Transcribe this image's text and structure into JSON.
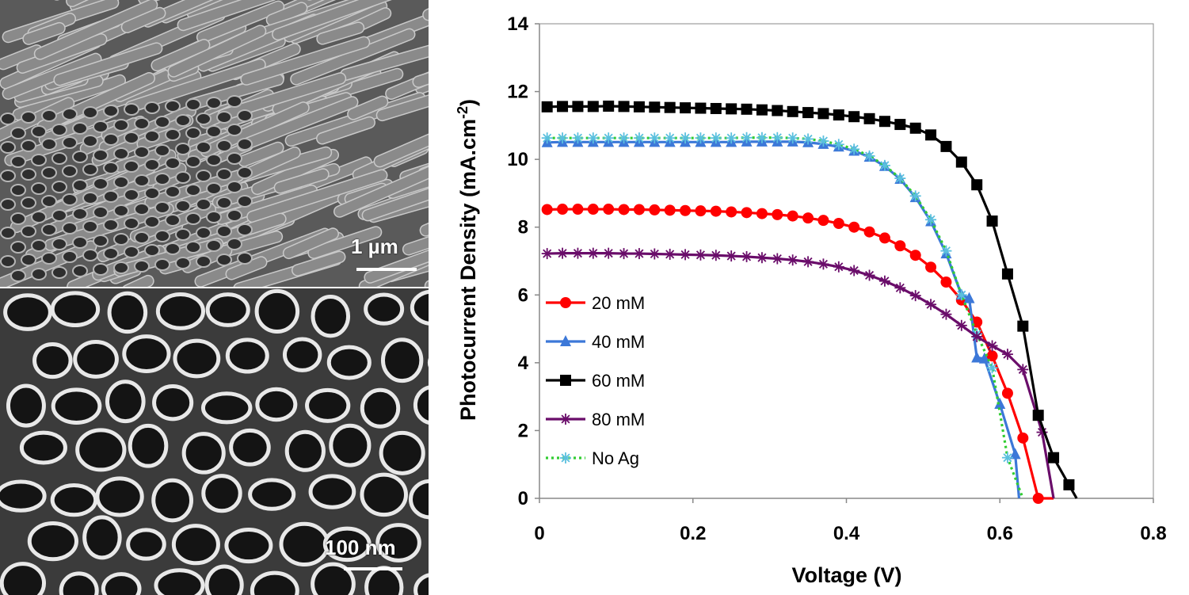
{
  "images": {
    "top": {
      "description_label": "SEM side view of TiO2 nanotube array",
      "scalebar_label": "1 µm"
    },
    "bottom": {
      "description_label": "SEM top view of TiO2 nanotube openings",
      "scalebar_label": "100 nm"
    }
  },
  "chart_data": {
    "type": "line",
    "title": "",
    "xlabel": "Voltage (V)",
    "ylabel": "Photocurrent Density (mA.cm",
    "ylabel_sup": "-2",
    "ylabel_end": ")",
    "xlim": [
      0,
      0.8
    ],
    "ylim": [
      0,
      14
    ],
    "xticks": [
      "0",
      "0.2",
      "0.4",
      "0.6",
      "0.8"
    ],
    "yticks": [
      "0",
      "2",
      "4",
      "6",
      "8",
      "10",
      "12",
      "14"
    ],
    "grid": false,
    "legend_position": "bottom-left",
    "series": [
      {
        "name": "20 mM",
        "color": "#ff0000",
        "marker": "circle",
        "dashed": false,
        "x": [
          0.01,
          0.03,
          0.05,
          0.07,
          0.09,
          0.11,
          0.13,
          0.15,
          0.17,
          0.19,
          0.21,
          0.23,
          0.25,
          0.27,
          0.29,
          0.31,
          0.33,
          0.35,
          0.37,
          0.39,
          0.41,
          0.43,
          0.45,
          0.47,
          0.49,
          0.51,
          0.53,
          0.55,
          0.57,
          0.59,
          0.61,
          0.63,
          0.65,
          0.67
        ],
        "y": [
          8.52,
          8.53,
          8.53,
          8.53,
          8.53,
          8.52,
          8.52,
          8.51,
          8.5,
          8.49,
          8.48,
          8.47,
          8.45,
          8.43,
          8.4,
          8.37,
          8.33,
          8.27,
          8.2,
          8.11,
          8.0,
          7.86,
          7.68,
          7.45,
          7.17,
          6.82,
          6.38,
          5.85,
          5.2,
          4.2,
          3.1,
          1.78,
          0.0,
          0.0
        ]
      },
      {
        "name": "40 mM",
        "color": "#3c78d8",
        "marker": "triangle",
        "dashed": false,
        "x": [
          0.01,
          0.03,
          0.05,
          0.07,
          0.09,
          0.11,
          0.13,
          0.15,
          0.17,
          0.19,
          0.21,
          0.23,
          0.25,
          0.27,
          0.29,
          0.31,
          0.33,
          0.35,
          0.37,
          0.39,
          0.41,
          0.43,
          0.45,
          0.47,
          0.49,
          0.51,
          0.53,
          0.55,
          0.56,
          0.57,
          0.58,
          0.6,
          0.62,
          0.625
        ],
        "y": [
          10.5,
          10.51,
          10.51,
          10.51,
          10.51,
          10.51,
          10.51,
          10.51,
          10.51,
          10.51,
          10.51,
          10.51,
          10.51,
          10.52,
          10.52,
          10.52,
          10.52,
          10.5,
          10.45,
          10.37,
          10.25,
          10.07,
          9.8,
          9.42,
          8.88,
          8.17,
          7.22,
          6.0,
          5.9,
          4.15,
          4.12,
          2.78,
          1.3,
          0.0
        ]
      },
      {
        "name": "60 mM",
        "color": "#000000",
        "marker": "square",
        "dashed": false,
        "x": [
          0.01,
          0.03,
          0.05,
          0.07,
          0.09,
          0.11,
          0.13,
          0.15,
          0.17,
          0.19,
          0.21,
          0.23,
          0.25,
          0.27,
          0.29,
          0.31,
          0.33,
          0.35,
          0.37,
          0.39,
          0.41,
          0.43,
          0.45,
          0.47,
          0.49,
          0.51,
          0.53,
          0.55,
          0.57,
          0.59,
          0.61,
          0.63,
          0.65,
          0.67,
          0.69,
          0.7
        ],
        "y": [
          11.55,
          11.56,
          11.56,
          11.56,
          11.57,
          11.56,
          11.55,
          11.54,
          11.53,
          11.52,
          11.51,
          11.5,
          11.49,
          11.48,
          11.46,
          11.44,
          11.41,
          11.38,
          11.35,
          11.31,
          11.26,
          11.2,
          11.12,
          11.03,
          10.92,
          10.72,
          10.38,
          9.92,
          9.25,
          8.18,
          6.62,
          5.08,
          2.45,
          1.2,
          0.4,
          0.0
        ]
      },
      {
        "name": "80 mM",
        "color": "#6a0d6a",
        "marker": "star",
        "dashed": false,
        "x": [
          0.01,
          0.03,
          0.05,
          0.07,
          0.09,
          0.11,
          0.13,
          0.15,
          0.17,
          0.19,
          0.21,
          0.23,
          0.25,
          0.27,
          0.29,
          0.31,
          0.33,
          0.35,
          0.37,
          0.39,
          0.41,
          0.43,
          0.45,
          0.47,
          0.49,
          0.51,
          0.53,
          0.55,
          0.57,
          0.59,
          0.61,
          0.63,
          0.655,
          0.67
        ],
        "y": [
          7.22,
          7.23,
          7.23,
          7.23,
          7.23,
          7.22,
          7.22,
          7.21,
          7.2,
          7.19,
          7.18,
          7.17,
          7.15,
          7.13,
          7.1,
          7.07,
          7.03,
          6.98,
          6.91,
          6.83,
          6.72,
          6.58,
          6.41,
          6.21,
          5.98,
          5.72,
          5.43,
          5.1,
          4.77,
          4.5,
          4.25,
          3.8,
          1.95,
          0.0
        ]
      },
      {
        "name": "No Ag",
        "color": "#32cd32",
        "marker": "star",
        "marker_color": "#5bc0de",
        "dashed": true,
        "x": [
          0.01,
          0.03,
          0.05,
          0.07,
          0.09,
          0.11,
          0.13,
          0.15,
          0.17,
          0.19,
          0.21,
          0.23,
          0.25,
          0.27,
          0.29,
          0.31,
          0.33,
          0.35,
          0.37,
          0.39,
          0.41,
          0.43,
          0.45,
          0.47,
          0.49,
          0.51,
          0.53,
          0.55,
          0.57,
          0.59,
          0.61,
          0.63
        ],
        "y": [
          10.63,
          10.63,
          10.63,
          10.63,
          10.63,
          10.63,
          10.63,
          10.63,
          10.63,
          10.63,
          10.63,
          10.63,
          10.63,
          10.64,
          10.64,
          10.64,
          10.63,
          10.6,
          10.54,
          10.44,
          10.3,
          10.1,
          9.82,
          9.44,
          8.92,
          8.22,
          7.3,
          6.0,
          4.85,
          3.85,
          1.2,
          0.0
        ]
      }
    ]
  }
}
